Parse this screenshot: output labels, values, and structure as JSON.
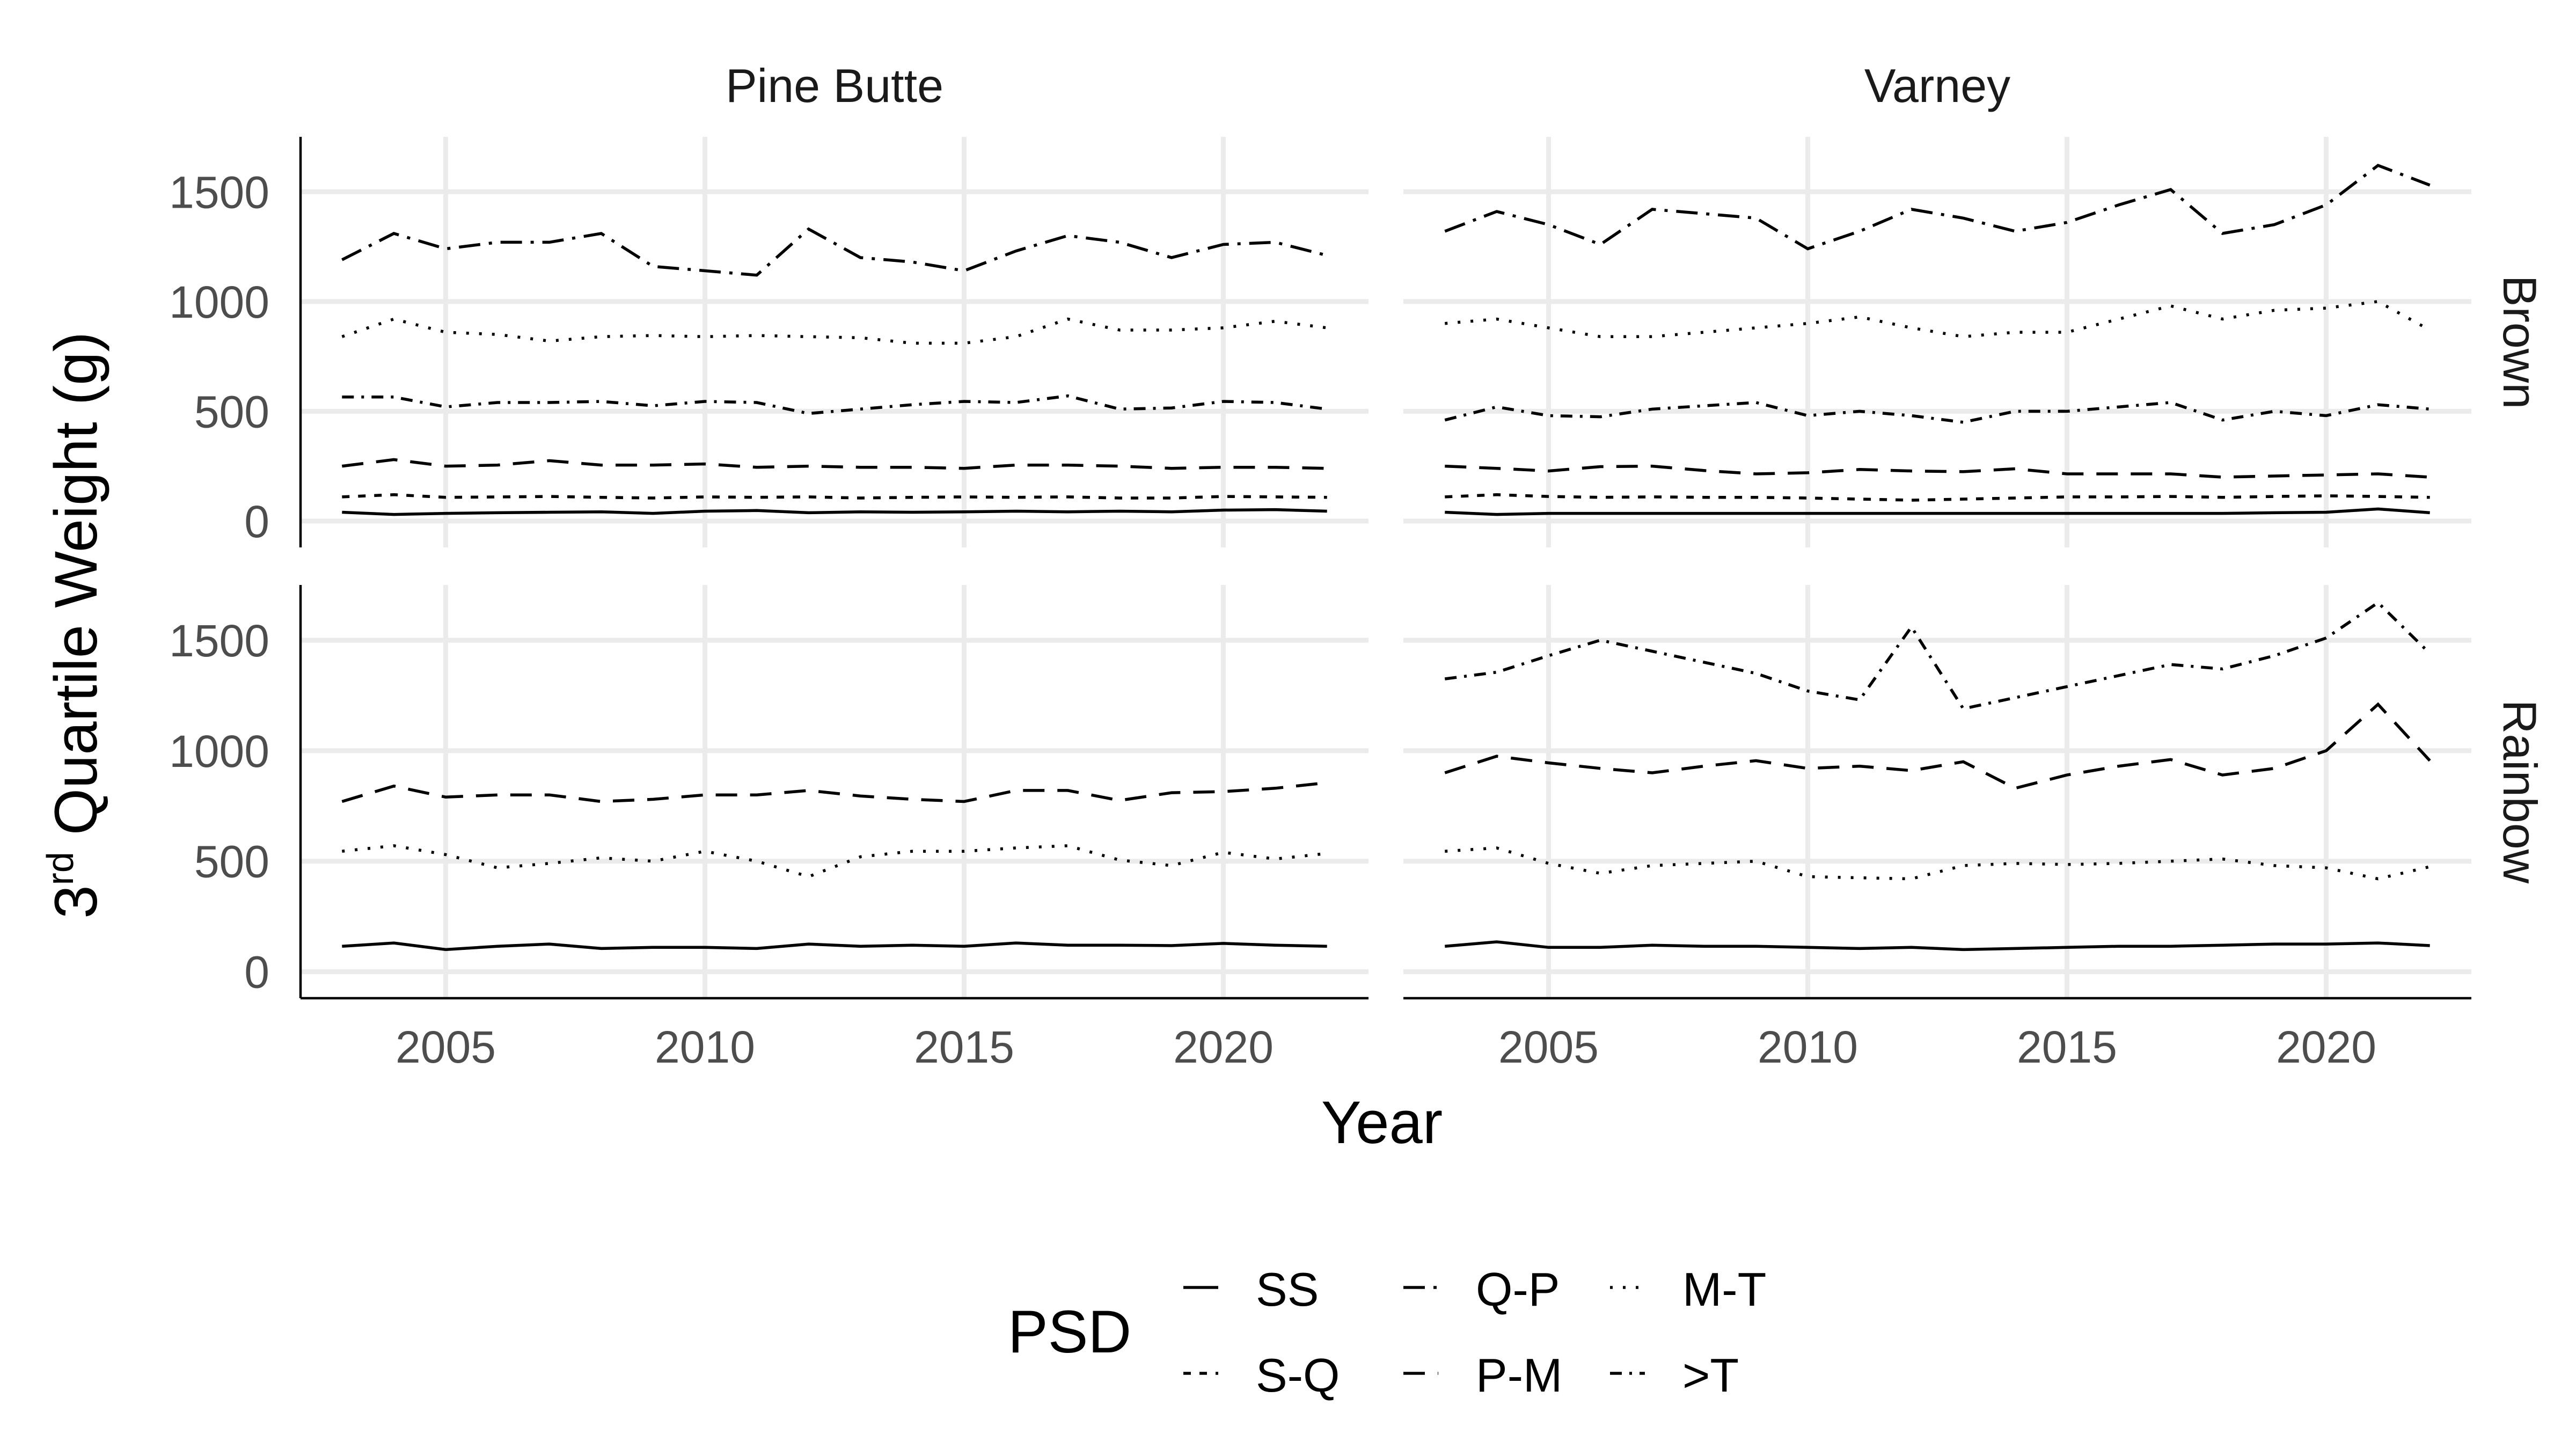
{
  "chart_data": {
    "type": "line",
    "facet_columns": [
      "Pine Butte",
      "Varney"
    ],
    "facet_rows": [
      "Brown",
      "Rainbow"
    ],
    "xlabel": "Year",
    "ylabel_base": "3",
    "ylabel_sup": "rd",
    "ylabel_rest": " Quartile Weight (g)",
    "x_ticks": [
      2005,
      2010,
      2015,
      2020
    ],
    "y_ticks": [
      0,
      500,
      1000,
      1500
    ],
    "xlim": [
      2002.2,
      2022.8
    ],
    "ylim": [
      -120,
      1750
    ],
    "legend": {
      "title": "PSD",
      "position": "bottom",
      "entries": [
        {
          "label": "SS",
          "dash": "solid"
        },
        {
          "label": "S-Q",
          "dash": "dashed-short"
        },
        {
          "label": "Q-P",
          "dash": "dashdot"
        },
        {
          "label": "P-M",
          "dash": "dashed-long"
        },
        {
          "label": "M-T",
          "dash": "dotted"
        },
        {
          "label": ">T",
          "dash": "dashdot-short"
        }
      ]
    },
    "years": [
      2003,
      2004,
      2005,
      2006,
      2007,
      2008,
      2009,
      2010,
      2011,
      2012,
      2013,
      2014,
      2015,
      2016,
      2017,
      2018,
      2019,
      2020,
      2021,
      2022
    ],
    "panels": [
      {
        "column": "Pine Butte",
        "row": "Brown",
        "series": [
          {
            "name": "SS",
            "values": [
              40,
              30,
              35,
              38,
              40,
              42,
              35,
              45,
              48,
              38,
              42,
              40,
              42,
              45,
              42,
              45,
              42,
              50,
              52,
              45
            ]
          },
          {
            "name": "S-Q",
            "values": [
              110,
              120,
              108,
              110,
              112,
              108,
              105,
              110,
              108,
              110,
              105,
              108,
              110,
              108,
              110,
              105,
              105,
              112,
              110,
              108
            ]
          },
          {
            "name": "P-M",
            "values": [
              250,
              280,
              250,
              255,
              275,
              255,
              255,
              260,
              245,
              250,
              245,
              245,
              240,
              255,
              255,
              250,
              240,
              245,
              245,
              240
            ]
          },
          {
            "name": ">T",
            "values": [
              565,
              565,
              520,
              540,
              540,
              545,
              525,
              545,
              540,
              490,
              510,
              530,
              545,
              540,
              570,
              510,
              515,
              545,
              540,
              510
            ]
          },
          {
            "name": "M-T",
            "values": [
              840,
              920,
              860,
              850,
              820,
              840,
              845,
              840,
              845,
              840,
              835,
              810,
              810,
              840,
              920,
              870,
              870,
              880,
              910,
              880
            ]
          },
          {
            "name": "Q-P",
            "values": [
              1190,
              1310,
              1240,
              1270,
              1270,
              1310,
              1160,
              1140,
              1120,
              1330,
              1200,
              1180,
              1140,
              1230,
              1300,
              1270,
              1200,
              1260,
              1270,
              1210
            ]
          }
        ]
      },
      {
        "column": "Varney",
        "row": "Brown",
        "series": [
          {
            "name": "SS",
            "values": [
              40,
              30,
              35,
              35,
              35,
              35,
              35,
              35,
              35,
              35,
              35,
              35,
              35,
              35,
              35,
              35,
              38,
              40,
              55,
              38
            ]
          },
          {
            "name": "S-Q",
            "values": [
              110,
              120,
              112,
              108,
              110,
              108,
              108,
              105,
              100,
              95,
              100,
              105,
              110,
              110,
              112,
              108,
              112,
              115,
              112,
              108
            ]
          },
          {
            "name": "P-M",
            "values": [
              250,
              240,
              228,
              248,
              250,
              230,
              215,
              220,
              235,
              228,
              225,
              238,
              215,
              215,
              215,
              200,
              205,
              210,
              215,
              200
            ]
          },
          {
            "name": ">T",
            "values": [
              460,
              520,
              480,
              475,
              510,
              525,
              540,
              480,
              500,
              480,
              450,
              500,
              500,
              520,
              540,
              460,
              500,
              480,
              530,
              510
            ]
          },
          {
            "name": "M-T",
            "values": [
              900,
              920,
              880,
              840,
              840,
              860,
              880,
              900,
              930,
              880,
              840,
              860,
              860,
              920,
              980,
              920,
              960,
              970,
              1000,
              870
            ]
          },
          {
            "name": "Q-P",
            "values": [
              1320,
              1410,
              1350,
              1260,
              1420,
              1400,
              1380,
              1240,
              1320,
              1420,
              1380,
              1320,
              1360,
              1440,
              1510,
              1310,
              1350,
              1440,
              1620,
              1530
            ]
          }
        ]
      },
      {
        "column": "Pine Butte",
        "row": "Rainbow",
        "series": [
          {
            "name": "SS",
            "values": [
              115,
              130,
              100,
              115,
              125,
              105,
              110,
              110,
              105,
              125,
              115,
              120,
              115,
              130,
              120,
              120,
              118,
              128,
              120,
              115
            ]
          },
          {
            "name": "M-T",
            "values": [
              545,
              570,
              530,
              470,
              490,
              515,
              500,
              545,
              500,
              430,
              520,
              545,
              545,
              560,
              570,
              505,
              480,
              540,
              510,
              535
            ]
          },
          {
            "name": "P-M",
            "values": [
              770,
              840,
              790,
              800,
              800,
              770,
              780,
              800,
              800,
              820,
              795,
              780,
              770,
              820,
              820,
              775,
              810,
              815,
              830,
              855
            ]
          }
        ]
      },
      {
        "column": "Varney",
        "row": "Rainbow",
        "series": [
          {
            "name": "SS",
            "values": [
              115,
              135,
              110,
              110,
              120,
              115,
              115,
              110,
              105,
              110,
              100,
              105,
              110,
              115,
              115,
              120,
              125,
              125,
              130,
              118
            ]
          },
          {
            "name": "M-T",
            "values": [
              545,
              560,
              490,
              445,
              480,
              490,
              500,
              430,
              425,
              420,
              480,
              490,
              485,
              490,
              500,
              510,
              480,
              470,
              420,
              475
            ]
          },
          {
            "name": "P-M",
            "values": [
              900,
              975,
              945,
              920,
              900,
              930,
              955,
              920,
              930,
              910,
              950,
              830,
              890,
              930,
              960,
              890,
              920,
              1000,
              1210,
              955
            ]
          },
          {
            "name": ">T",
            "values": [
              1325,
              1355,
              1430,
              1500,
              1450,
              1400,
              1350,
              1270,
              1230,
              1560,
              1190,
              1240,
              1290,
              1340,
              1390,
              1370,
              1430,
              1510,
              1670,
              1440
            ]
          }
        ]
      }
    ]
  }
}
